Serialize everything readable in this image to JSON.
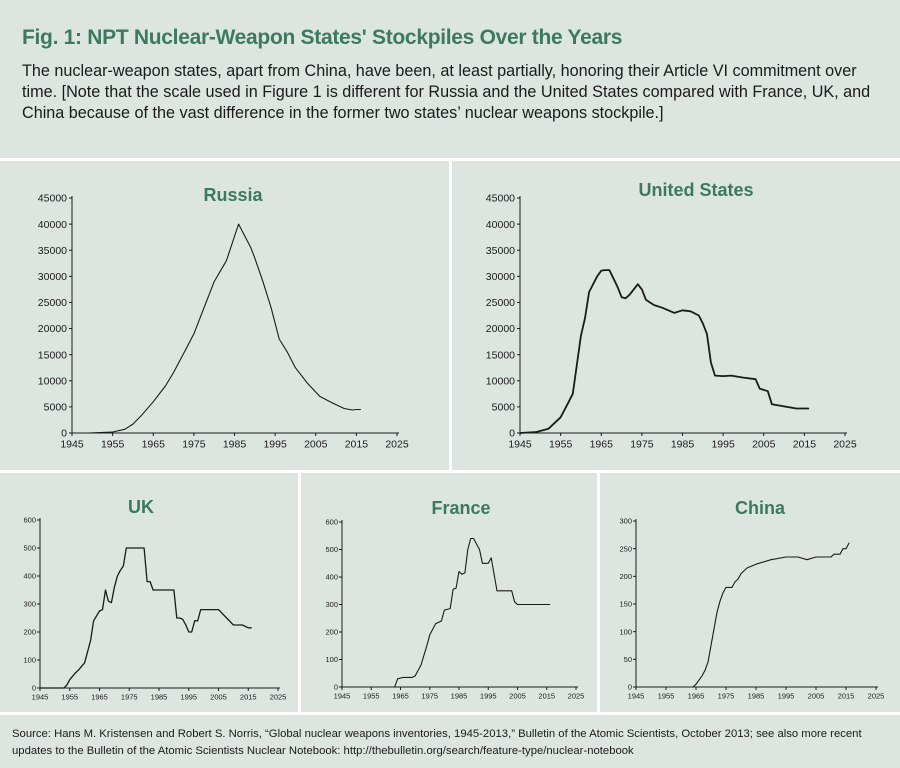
{
  "figure": {
    "title": "Fig. 1: NPT Nuclear-Weapon States' Stockpiles Over the Years",
    "intro": "The nuclear-weapon states, apart from China, have been, at least partially, honoring their Article VI commitment over time. [Note that the scale used in Figure 1 is different for Russia and the United States compared with France, UK, and China because of the vast difference in the former two states’ nuclear weapons stockpile.]",
    "source": "Source: Hans M. Kristensen and Robert S. Norris, “Global nuclear weapons inventories, 1945-2013,” Bulletin of the Atomic Scientists, October 2013; see also more recent updates to the Bulletin of the Atomic Scientists Nuclear Notebook: http://thebulletin.org/search/feature-type/nuclear-notebook"
  },
  "colors": {
    "title": "#3c7a5e",
    "background": "#dde5e1",
    "divider": "#ffffff",
    "line": "#1a1a1a"
  },
  "chart_data": [
    {
      "id": "russia",
      "type": "line",
      "title": "Russia",
      "xlim": [
        1945,
        2025
      ],
      "ylim": [
        0,
        45000
      ],
      "xticks": [
        1945,
        1955,
        1965,
        1975,
        1985,
        1995,
        2005,
        2015,
        2025
      ],
      "yticks": [
        0,
        5000,
        10000,
        15000,
        20000,
        25000,
        30000,
        35000,
        40000,
        45000
      ],
      "grid": false,
      "x": [
        1949,
        1955,
        1958,
        1960,
        1962,
        1965,
        1968,
        1970,
        1973,
        1975,
        1977,
        1980,
        1983,
        1986,
        1988,
        1989,
        1990,
        1992,
        1994,
        1996,
        1998,
        2000,
        2003,
        2006,
        2009,
        2012,
        2014,
        2015,
        2016
      ],
      "y": [
        0,
        200,
        700,
        1700,
        3300,
        6000,
        9000,
        11600,
        16000,
        19000,
        23000,
        29000,
        33000,
        40000,
        37000,
        35500,
        33500,
        29000,
        24000,
        18000,
        15500,
        12500,
        9500,
        7000,
        5800,
        4700,
        4400,
        4500,
        4500
      ]
    },
    {
      "id": "united-states",
      "type": "line",
      "title": "United States",
      "xlim": [
        1945,
        2025
      ],
      "ylim": [
        0,
        45000
      ],
      "xticks": [
        1945,
        1955,
        1965,
        1975,
        1985,
        1995,
        2005,
        2015,
        2025
      ],
      "yticks": [
        0,
        5000,
        10000,
        15000,
        20000,
        25000,
        30000,
        35000,
        40000,
        45000
      ],
      "grid": false,
      "x": [
        1945,
        1949,
        1952,
        1955,
        1957,
        1958,
        1960,
        1961,
        1962,
        1964,
        1965,
        1966,
        1967,
        1969,
        1970,
        1971,
        1972,
        1974,
        1975,
        1976,
        1978,
        1980,
        1983,
        1985,
        1987,
        1989,
        1990,
        1991,
        1992,
        1993,
        1995,
        1997,
        2000,
        2003,
        2004,
        2006,
        2007,
        2010,
        2013,
        2016
      ],
      "y": [
        0,
        200,
        800,
        3000,
        6000,
        7500,
        18600,
        22000,
        27000,
        30000,
        31100,
        31200,
        31200,
        28000,
        26000,
        25800,
        26500,
        28500,
        27500,
        25500,
        24500,
        24000,
        23000,
        23500,
        23300,
        22500,
        21000,
        19000,
        13500,
        11000,
        10900,
        11000,
        10600,
        10300,
        8500,
        8000,
        5500,
        5100,
        4700,
        4700
      ]
    },
    {
      "id": "uk",
      "type": "line",
      "title": "UK",
      "xlim": [
        1945,
        2025
      ],
      "ylim": [
        0,
        600
      ],
      "xticks": [
        1945,
        1955,
        1965,
        1975,
        1985,
        1995,
        2005,
        2015,
        2025
      ],
      "yticks": [
        0,
        100,
        200,
        300,
        400,
        500,
        600
      ],
      "grid": false,
      "x": [
        1945,
        1953,
        1954,
        1955,
        1957,
        1958,
        1960,
        1962,
        1963,
        1965,
        1966,
        1967,
        1968,
        1969,
        1970,
        1971,
        1972,
        1973,
        1974,
        1975,
        1980,
        1981,
        1982,
        1983,
        1984,
        1985,
        1990,
        1991,
        1992,
        1993,
        1994,
        1995,
        1996,
        1997,
        1998,
        1999,
        2005,
        2010,
        2011,
        2013,
        2015,
        2016
      ],
      "y": [
        0,
        0,
        10,
        30,
        55,
        65,
        90,
        170,
        240,
        275,
        280,
        350,
        310,
        305,
        360,
        400,
        420,
        435,
        500,
        500,
        500,
        380,
        380,
        350,
        350,
        350,
        350,
        250,
        250,
        245,
        225,
        200,
        200,
        240,
        240,
        280,
        280,
        225,
        225,
        225,
        215,
        215
      ]
    },
    {
      "id": "france",
      "type": "line",
      "title": "France",
      "xlim": [
        1945,
        2025
      ],
      "ylim": [
        0,
        600
      ],
      "xticks": [
        1945,
        1955,
        1965,
        1975,
        1985,
        1995,
        2005,
        2015,
        2025
      ],
      "yticks": [
        0,
        100,
        200,
        300,
        400,
        500,
        600
      ],
      "grid": false,
      "x": [
        1945,
        1963,
        1964,
        1966,
        1969,
        1970,
        1972,
        1974,
        1975,
        1977,
        1979,
        1980,
        1982,
        1983,
        1984,
        1985,
        1986,
        1987,
        1988,
        1989,
        1990,
        1991,
        1992,
        1993,
        1994,
        1995,
        1996,
        1998,
        1999,
        2000,
        2003,
        2004,
        2005,
        2007,
        2008,
        2011,
        2016
      ],
      "y": [
        0,
        0,
        30,
        35,
        35,
        40,
        80,
        150,
        190,
        230,
        240,
        280,
        285,
        355,
        360,
        420,
        410,
        415,
        500,
        540,
        540,
        520,
        500,
        450,
        450,
        450,
        470,
        350,
        350,
        350,
        350,
        310,
        300,
        300,
        300,
        300,
        300
      ]
    },
    {
      "id": "china",
      "type": "line",
      "title": "China",
      "xlim": [
        1945,
        2025
      ],
      "ylim": [
        0,
        300
      ],
      "xticks": [
        1945,
        1955,
        1965,
        1975,
        1985,
        1995,
        2005,
        2015,
        2025
      ],
      "yticks": [
        0,
        50,
        100,
        150,
        200,
        250,
        300
      ],
      "grid": false,
      "x": [
        1945,
        1964,
        1965,
        1967,
        1968,
        1969,
        1970,
        1971,
        1972,
        1973,
        1974,
        1975,
        1976,
        1977,
        1978,
        1979,
        1980,
        1982,
        1985,
        1990,
        1995,
        1999,
        2002,
        2005,
        2007,
        2010,
        2011,
        2013,
        2014,
        2015,
        2016
      ],
      "y": [
        0,
        0,
        5,
        20,
        30,
        45,
        75,
        105,
        135,
        155,
        170,
        180,
        180,
        180,
        190,
        195,
        205,
        215,
        222,
        230,
        235,
        235,
        230,
        235,
        235,
        235,
        240,
        240,
        250,
        250,
        260
      ]
    }
  ]
}
